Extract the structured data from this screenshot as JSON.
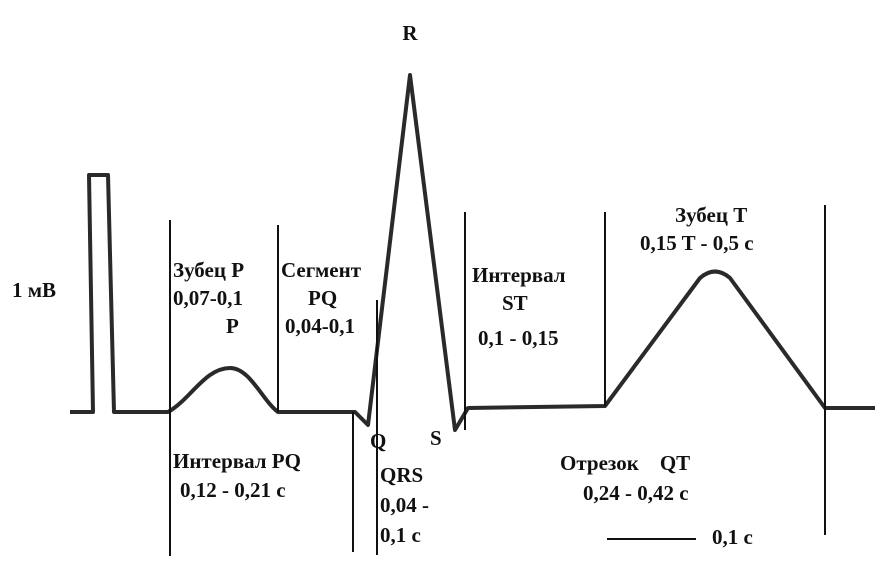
{
  "labels": {
    "r": "R",
    "amplitude": "1 мВ",
    "p_wave_title": "Зубец P",
    "p_wave_duration": "0,07-0,1",
    "p_wave_unit": "P",
    "pq_segment_title": "Сегмент",
    "pq_segment_name": "PQ",
    "pq_segment_duration": "0,04-0,1",
    "st_interval_title": "Интервал",
    "st_interval_name": "ST",
    "st_interval_duration": "0,1 - 0,15",
    "t_wave_title": "Зубец T",
    "t_wave_duration": "0,15 T - 0,5 с",
    "q": "Q",
    "s": "S",
    "pq_interval_title": "Интервал PQ",
    "pq_interval_duration": "0,12 - 0,21 с",
    "qrs_title": "QRS",
    "qrs_duration_1": "0,04 -",
    "qrs_duration_2": "0,1 с",
    "qt_title": "Отрезок    QT",
    "qt_duration": "0,24 - 0,42 с",
    "scale": "0,1 с"
  }
}
